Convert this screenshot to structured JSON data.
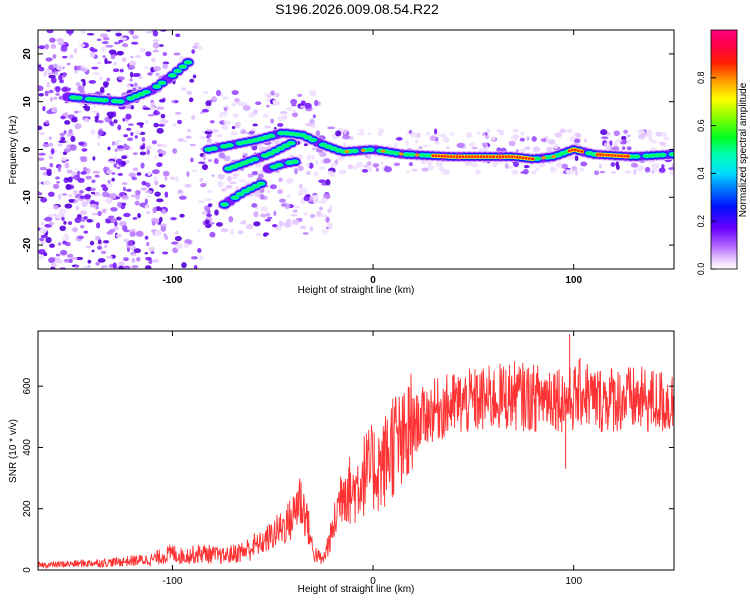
{
  "title": "S196.2026.009.08.54.R22",
  "chart_data": [
    {
      "type": "heatmap",
      "xlabel": "Height of straight line (km)",
      "ylabel": "Frequency (Hz)",
      "xlim": [
        -167,
        150
      ],
      "ylim": [
        -25,
        25
      ],
      "xticks": [
        -100,
        0,
        100
      ],
      "yticks": [
        -20,
        -10,
        0,
        10,
        20
      ],
      "colorbar": {
        "label": "Normalized spectral amplitude",
        "range": [
          0,
          1
        ],
        "ticks": [
          "0.0",
          "0.2",
          "0.4",
          "0.6",
          "0.8"
        ],
        "tick_values": [
          0,
          0.2,
          0.4,
          0.6,
          0.8
        ]
      },
      "ridges": [
        {
          "name": "upper-branch",
          "points": [
            [
              -152,
              11
            ],
            [
              -140,
              10.5
            ],
            [
              -125,
              10
            ],
            [
              -110,
              12.5
            ],
            [
              -100,
              15.5
            ],
            [
              -90,
              19
            ]
          ]
        },
        {
          "name": "main-branch",
          "points": [
            [
              -82,
              0
            ],
            [
              -70,
              1
            ],
            [
              -58,
              2
            ],
            [
              -45,
              3.5
            ],
            [
              -35,
              3
            ],
            [
              -25,
              1
            ],
            [
              -15,
              -0.5
            ],
            [
              0,
              0
            ],
            [
              15,
              -1
            ],
            [
              40,
              -1.5
            ],
            [
              70,
              -1.5
            ],
            [
              80,
              -2
            ],
            [
              90,
              -1.5
            ],
            [
              100,
              0
            ],
            [
              110,
              -1
            ],
            [
              130,
              -1.5
            ],
            [
              150,
              -1
            ]
          ]
        },
        {
          "name": "lower-branch-1",
          "points": [
            [
              -72,
              -4
            ],
            [
              -62,
              -2.5
            ],
            [
              -52,
              -1
            ],
            [
              -40,
              1.5
            ]
          ]
        },
        {
          "name": "lower-branch-2",
          "points": [
            [
              -74,
              -11.5
            ],
            [
              -65,
              -9
            ],
            [
              -55,
              -7
            ]
          ]
        },
        {
          "name": "lower-branch-3",
          "points": [
            [
              -52,
              -4
            ],
            [
              -45,
              -3
            ],
            [
              -38,
              -2.5
            ]
          ]
        }
      ]
    },
    {
      "type": "line",
      "xlabel": "Height of straight line (km)",
      "ylabel": "SNR (10 * v/v)",
      "xlim": [
        -167,
        150
      ],
      "ylim": [
        0,
        780
      ],
      "xticks": [
        -100,
        0,
        100
      ],
      "yticks": [
        0,
        200,
        400,
        600
      ],
      "color": "#ff3333",
      "series": [
        {
          "name": "SNR",
          "x": [
            -167,
            -150,
            -130,
            -110,
            -100,
            -95,
            -85,
            -75,
            -65,
            -55,
            -45,
            -40,
            -37,
            -33,
            -30,
            -25,
            -20,
            -15,
            -10,
            -5,
            0,
            5,
            10,
            15,
            20,
            25,
            30,
            40,
            50,
            60,
            70,
            80,
            90,
            95,
            100,
            105,
            110,
            120,
            130,
            140,
            150
          ],
          "y": [
            15,
            20,
            25,
            35,
            55,
            45,
            55,
            45,
            60,
            90,
            140,
            170,
            240,
            170,
            60,
            30,
            130,
            280,
            250,
            310,
            330,
            340,
            420,
            400,
            470,
            500,
            520,
            540,
            550,
            560,
            570,
            560,
            575,
            555,
            560,
            585,
            555,
            560,
            555,
            550,
            545
          ]
        }
      ],
      "annotations": [
        {
          "x": 98,
          "y": 770,
          "text": ""
        },
        {
          "x": 96,
          "y": 330,
          "text": ""
        }
      ]
    }
  ]
}
